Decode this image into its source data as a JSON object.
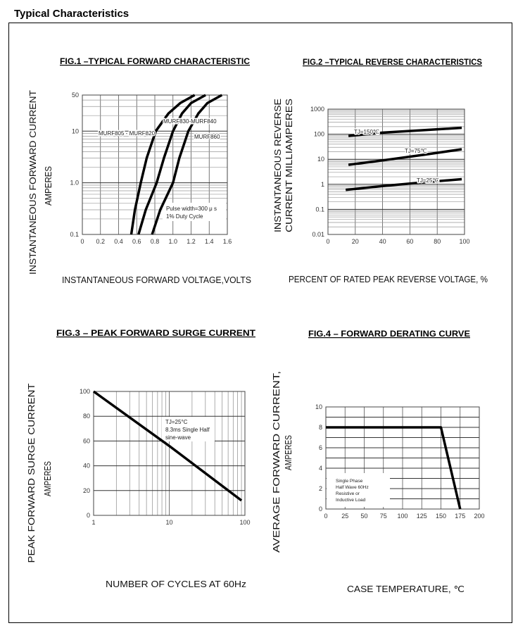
{
  "page": {
    "heading": "Typical Characteristics"
  },
  "chart_data": [
    {
      "type": "line",
      "title": "FIG.1 –TYPICAL FORWARD CHARACTERISTIC",
      "xlabel": "INSTANTANEOUS FORWARD VOLTAGE,VOLTS",
      "ylabel": [
        "INSTANTANEOUS FORWARD CURRENT",
        "AMPERES"
      ],
      "xscale": "linear",
      "yscale": "log",
      "xlim": [
        0,
        1.6
      ],
      "ylim": [
        0.1,
        50
      ],
      "xticks": [
        0,
        0.2,
        0.4,
        0.6,
        0.8,
        1.0,
        1.2,
        1.4,
        1.6
      ],
      "xtick_labels": [
        "0",
        "0.2",
        "0.4",
        "0.6",
        "0.8",
        "1.0",
        "1.2",
        "1.4",
        "1.6"
      ],
      "yticks": [
        0.1,
        1,
        10,
        50
      ],
      "ytick_labels": [
        "0.1",
        "1.0",
        "10",
        "50"
      ],
      "grid": true,
      "series": [
        {
          "name": "MURF805 - MURF820",
          "x": [
            0.54,
            0.58,
            0.645,
            0.71,
            0.81,
            0.95,
            1.08,
            1.24
          ],
          "y": [
            0.1,
            0.3,
            1,
            3,
            10,
            22,
            35,
            50
          ]
        },
        {
          "name": "MURF830-MURF840",
          "x": [
            0.62,
            0.7,
            0.82,
            0.9,
            1.0,
            1.1,
            1.2,
            1.36
          ],
          "y": [
            0.1,
            0.3,
            1,
            3,
            10,
            22,
            35,
            50
          ]
        },
        {
          "name": "MURF860",
          "x": [
            0.77,
            0.86,
            1.0,
            1.07,
            1.17,
            1.28,
            1.38,
            1.54
          ],
          "y": [
            0.1,
            0.3,
            1,
            3,
            10,
            22,
            35,
            50
          ]
        }
      ],
      "annotations": [
        "Pulse width=300 μ s",
        "1% Duty Cycle"
      ]
    },
    {
      "type": "line",
      "title": "FIG.2 –TYPICAL REVERSE CHARACTERISTICS",
      "xlabel": "PERCENT OF RATED PEAK REVERSE VOLTAGE, %",
      "ylabel": [
        "INSTANTANEOUS REVERSE",
        "CURRENT MILLIAMPERES"
      ],
      "xscale": "linear",
      "yscale": "log",
      "xlim": [
        0,
        100
      ],
      "ylim": [
        0.01,
        1000
      ],
      "xticks": [
        0,
        20,
        40,
        60,
        80,
        100
      ],
      "xtick_labels": [
        "0",
        "20",
        "40",
        "60",
        "80",
        "100"
      ],
      "yticks": [
        0.01,
        0.1,
        1,
        10,
        100,
        1000
      ],
      "ytick_labels": [
        "0.01",
        "0.1",
        "1",
        "10",
        "100",
        "1000"
      ],
      "grid": true,
      "series": [
        {
          "name": "TJ=150℃",
          "x": [
            15,
            40,
            70,
            98
          ],
          "y": [
            85,
            115,
            145,
            180
          ]
        },
        {
          "name": "TJ=75℃",
          "x": [
            15,
            40,
            70,
            98
          ],
          "y": [
            6,
            9,
            15,
            25
          ]
        },
        {
          "name": "TJ=25℃",
          "x": [
            13,
            40,
            70,
            98
          ],
          "y": [
            0.6,
            0.85,
            1.2,
            1.6
          ]
        }
      ],
      "annotations": []
    },
    {
      "type": "line",
      "title": "FIG.3 – PEAK FORWARD SURGE CURRENT",
      "xlabel": "NUMBER OF CYCLES AT 60Hz",
      "ylabel": [
        "PEAK FORWARD SURGE CURRENT",
        "AMPERES"
      ],
      "xscale": "log",
      "yscale": "linear",
      "xlim": [
        1,
        100
      ],
      "ylim": [
        0,
        100
      ],
      "xticks": [
        1,
        10,
        100
      ],
      "xtick_labels": [
        "1",
        "10",
        "100"
      ],
      "yticks": [
        0,
        20,
        40,
        60,
        80,
        100
      ],
      "ytick_labels": [
        "0",
        "20",
        "40",
        "60",
        "80",
        "100"
      ],
      "grid": true,
      "series": [
        {
          "x": [
            1,
            10,
            90
          ],
          "y": [
            100,
            56,
            12
          ]
        }
      ],
      "annotations": [
        "TJ=25°C",
        "8.3ms Single Half",
        "sine-wave"
      ]
    },
    {
      "type": "line",
      "title": "FIG.4 – FORWARD DERATING CURVE",
      "xlabel": "CASE TEMPERATURE, ℃",
      "ylabel": [
        "AVERAGE FORWARD CURRENT,",
        "AMPERES"
      ],
      "xscale": "linear",
      "yscale": "linear",
      "xlim": [
        0,
        200
      ],
      "ylim": [
        0,
        10
      ],
      "xticks": [
        0,
        25,
        50,
        75,
        100,
        125,
        150,
        175,
        200
      ],
      "xtick_labels": [
        "0",
        "25",
        "50",
        "75",
        "100",
        "125",
        "150",
        "175",
        "200"
      ],
      "yticks": [
        0,
        2,
        4,
        6,
        8,
        10
      ],
      "ytick_labels": [
        "0",
        "2",
        "4",
        "6",
        "8",
        "10"
      ],
      "grid": true,
      "series": [
        {
          "x": [
            0,
            150,
            175
          ],
          "y": [
            8,
            8,
            0
          ]
        }
      ],
      "annotations": [
        "Single Phase",
        "Half Wave 60Hz",
        "Resistive or",
        "Inductive Load"
      ]
    }
  ]
}
